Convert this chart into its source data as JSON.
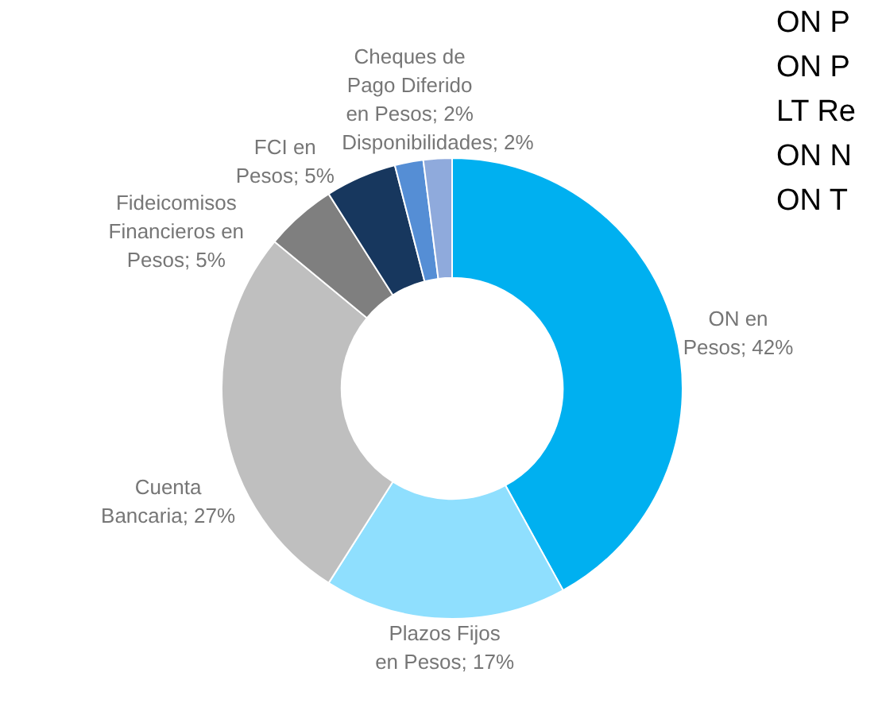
{
  "chart_data": {
    "type": "donut",
    "categories": [
      "ON en Pesos",
      "Plazos Fijos en Pesos",
      "Cuenta Bancaria",
      "Fideicomisos Financieros en Pesos",
      "FCI en Pesos",
      "Cheques de Pago Diferido en Pesos",
      "Disponibilidades"
    ],
    "values": [
      42,
      17,
      27,
      5,
      5,
      2,
      2
    ],
    "colors": [
      "#00b0f0",
      "#8fdffe",
      "#bfbfbf",
      "#7f7f7f",
      "#17375e",
      "#558ed5",
      "#8faadc"
    ],
    "value_labels": [
      "42%",
      "17%",
      "27%",
      "5%",
      "5%",
      "2%",
      "2%"
    ],
    "annotations": [
      "ON P",
      "ON P",
      "LT Re",
      "ON N",
      "ON T"
    ]
  }
}
